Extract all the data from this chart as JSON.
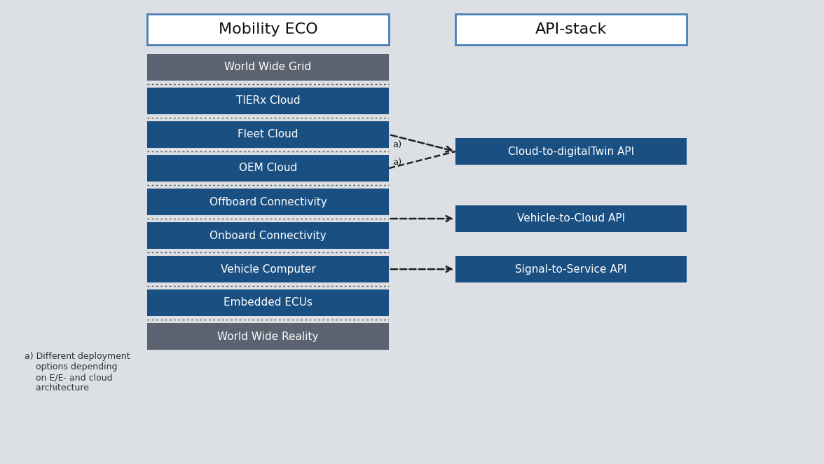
{
  "background_color": "#dce0e5",
  "title_mobility": "Mobility ECO",
  "title_api": "API-stack",
  "title_box_color": "#ffffff",
  "title_border_color": "#4a7fb5",
  "title_text_color": "#111111",
  "layers": [
    {
      "label": "World Wide Grid",
      "color": "#5b6370"
    },
    {
      "label": "TIERx Cloud",
      "color": "#1a4f82"
    },
    {
      "label": "Fleet Cloud",
      "color": "#1a4f82"
    },
    {
      "label": "OEM Cloud",
      "color": "#1a4f82"
    },
    {
      "label": "Offboard Connectivity",
      "color": "#1a4f82"
    },
    {
      "label": "Onboard Connectivity",
      "color": "#1a4f82"
    },
    {
      "label": "Vehicle Computer",
      "color": "#1a4f82"
    },
    {
      "label": "Embedded ECUs",
      "color": "#1a4f82"
    },
    {
      "label": "World Wide Reality",
      "color": "#5b6370"
    }
  ],
  "api_boxes": [
    {
      "label": "Cloud-to-digitalTwin API",
      "color": "#1a4f82",
      "layer_idx": 3
    },
    {
      "label": "Vehicle-to-Cloud API",
      "color": "#1a4f82",
      "layer_idx": 5
    },
    {
      "label": "Signal-to-Service API",
      "color": "#1a4f82",
      "layer_idx": 7
    }
  ],
  "layer_text_color": "#ffffff",
  "dot_color": "#555555",
  "arrow_color": "#222222",
  "annotation_text": "a) Different deployment\n    options depending\n    on E/E- and cloud\n    architecture",
  "annotation_fontsize": 9,
  "layer_fontsize": 11,
  "title_fontsize": 16,
  "api_fontsize": 11
}
